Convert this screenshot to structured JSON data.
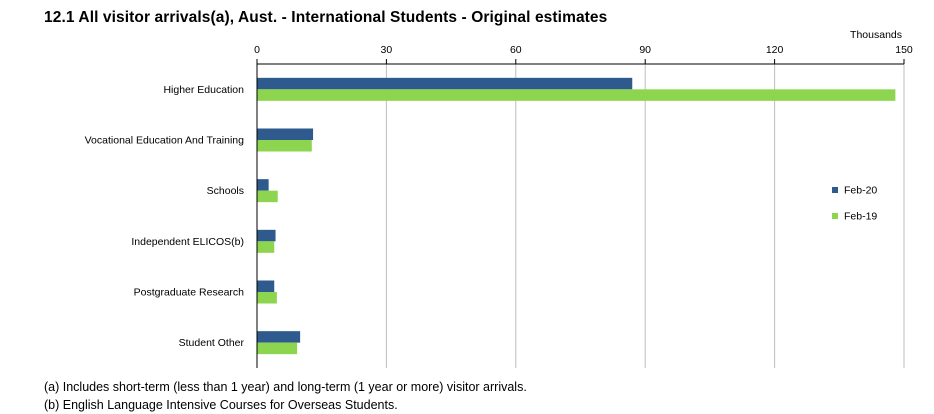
{
  "chart_data": {
    "type": "bar",
    "orientation": "horizontal",
    "title": "12.1 All visitor arrivals(a), Aust. - International Students - Original estimates",
    "unit_label": "Thousands",
    "xlim": [
      0,
      150
    ],
    "x_ticks": [
      0,
      30,
      60,
      90,
      120,
      150
    ],
    "grid": true,
    "legend_position": "right",
    "categories": [
      "Higher Education",
      "Vocational Education And Training",
      "Schools",
      "Independent ELICOS(b)",
      "Postgraduate Research",
      "Student Other"
    ],
    "series": [
      {
        "name": "Feb-20",
        "color": "#2e5a8e",
        "values": [
          87,
          13,
          2.7,
          4.3,
          4,
          10
        ]
      },
      {
        "name": "Feb-19",
        "color": "#8dd44f",
        "values": [
          148,
          12.7,
          4.8,
          4,
          4.6,
          9.3
        ]
      }
    ]
  },
  "footnotes": {
    "a": "(a) Includes short-term (less than 1 year) and long-term (1 year or more) visitor arrivals.",
    "b": "(b) English Language Intensive Courses for Overseas Students."
  }
}
